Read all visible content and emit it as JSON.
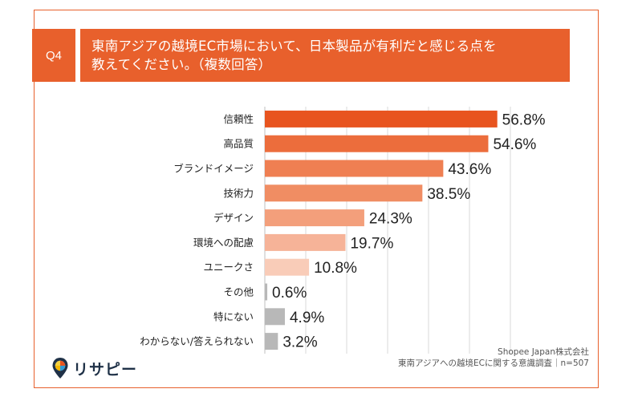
{
  "question": {
    "number": "Q4",
    "text_line1": "東南アジアの越境EC市場において、日本製品が有利だと感じる点を",
    "text_line2": "教えてください。（複数回答）"
  },
  "chart_data": {
    "type": "bar",
    "orientation": "horizontal",
    "categories": [
      "信頼性",
      "高品質",
      "ブランドイメージ",
      "技術力",
      "デザイン",
      "環境への配慮",
      "ユニークさ",
      "その他",
      "特にない",
      "わからない/答えられない"
    ],
    "values": [
      56.8,
      54.6,
      43.6,
      38.5,
      24.3,
      19.7,
      10.8,
      0.6,
      4.9,
      3.2
    ],
    "value_labels": [
      "56.8%",
      "54.6%",
      "43.6%",
      "38.5%",
      "24.3%",
      "19.7%",
      "10.8%",
      "0.6%",
      "4.9%",
      "3.2%"
    ],
    "bar_colors": [
      "#e8541f",
      "#ec6d3c",
      "#ef7f52",
      "#f08d63",
      "#f39f7b",
      "#f6b398",
      "#f9ccb8",
      "#b8b8b8",
      "#b8b8b8",
      "#b8b8b8"
    ],
    "xlim": [
      0,
      60
    ],
    "grid": true
  },
  "logo": {
    "text": "リサピー"
  },
  "footer": {
    "line1": "Shopee Japan株式会社",
    "line2": "東南アジアへの越境ECに関する意識調査｜n=507"
  }
}
